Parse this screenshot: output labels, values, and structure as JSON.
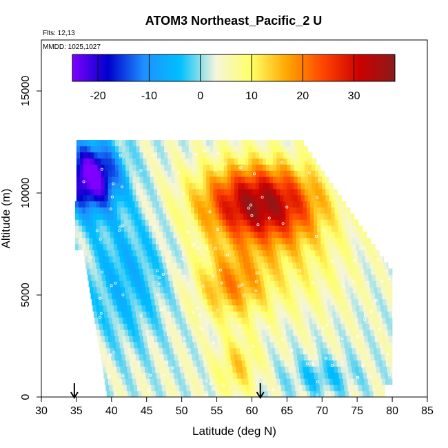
{
  "chart_data": {
    "type": "heatmap",
    "title": "ATOM3 Northeast_Pacific_2 U",
    "annotations": {
      "flights": "Flts: 12,13",
      "dates": "MMDD: 1025,1027"
    },
    "xlabel": "Latitude (deg N)",
    "ylabel": "Altitude (m)",
    "xlim": [
      30,
      85
    ],
    "ylim": [
      0,
      17500
    ],
    "x_ticks": [
      "30",
      "35",
      "40",
      "45",
      "50",
      "55",
      "60",
      "65",
      "70",
      "75",
      "80",
      "85"
    ],
    "y_ticks": [
      "0",
      "5000",
      "10000",
      "15000"
    ],
    "colorbar": {
      "range": [
        -25,
        38
      ],
      "ticks": [
        "-20",
        "-10",
        "0",
        "10",
        "20",
        "30"
      ],
      "tick_values": [
        -20,
        -10,
        0,
        10,
        20,
        30
      ],
      "colors": [
        "#7f00ff",
        "#0000cd",
        "#1e90ff",
        "#00bfff",
        "#f5f5dc",
        "#ffff66",
        "#ffa500",
        "#ff4500",
        "#cc0000",
        "#8b1a1a"
      ]
    },
    "markers": [
      {
        "label": "profile-marker",
        "x": 34.7
      },
      {
        "label": "profile-marker",
        "x": 61.2
      }
    ],
    "grid": false,
    "legend": "colorbar-top"
  }
}
